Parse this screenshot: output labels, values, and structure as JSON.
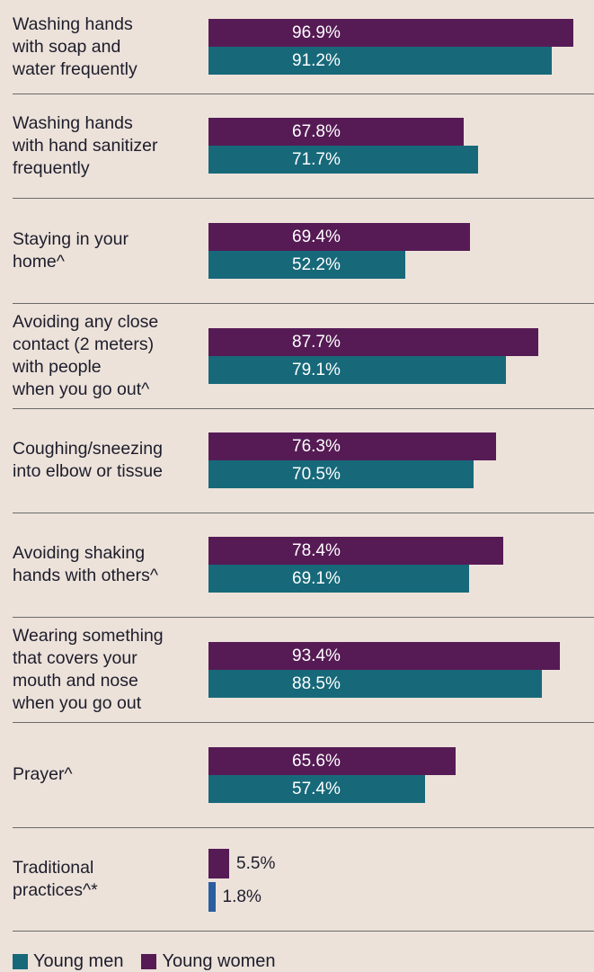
{
  "chart_data": {
    "type": "bar",
    "orientation": "horizontal",
    "xlim": [
      0,
      100
    ],
    "categories": [
      [
        "Washing hands",
        "with soap and",
        "water frequently"
      ],
      [
        "Washing hands",
        "with hand sanitizer",
        "frequently"
      ],
      [
        "Staying in your",
        "home^"
      ],
      [
        "Avoiding any close",
        "contact (2 meters)",
        "with people",
        "when you go out^"
      ],
      [
        "Coughing/sneezing",
        "into elbow or tissue"
      ],
      [
        "Avoiding shaking",
        "hands with others^"
      ],
      [
        "Wearing something",
        "that covers your",
        "mouth and nose",
        "when you go out"
      ],
      [
        "Prayer^"
      ],
      [
        "Traditional",
        "practices^*"
      ]
    ],
    "series": [
      {
        "name": "Young women",
        "color": "#561b55",
        "values": [
          96.9,
          67.8,
          69.4,
          87.7,
          76.3,
          78.4,
          93.4,
          65.6,
          5.5
        ],
        "labels": [
          "96.9%",
          "67.8%",
          "69.4%",
          "87.7%",
          "76.3%",
          "78.4%",
          "93.4%",
          "65.6%",
          "5.5%"
        ]
      },
      {
        "name": "Young men",
        "color": "#17697a",
        "alt_color": "#2a5ea0",
        "values": [
          91.2,
          71.7,
          52.2,
          79.1,
          70.5,
          69.1,
          88.5,
          57.4,
          1.8
        ],
        "labels": [
          "91.2%",
          "71.7%",
          "52.2%",
          "79.1%",
          "70.5%",
          "69.1%",
          "88.5%",
          "57.4%",
          "1.8%"
        ]
      }
    ],
    "legend": {
      "position": "bottom-left",
      "items": [
        {
          "label": "Young men",
          "color": "#17697a"
        },
        {
          "label": "Young women",
          "color": "#561b55"
        }
      ]
    }
  }
}
